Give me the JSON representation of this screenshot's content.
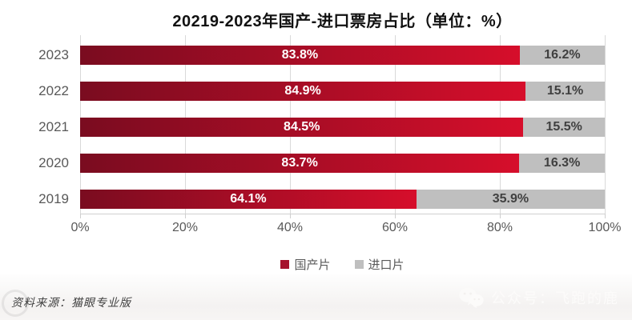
{
  "title": "20219-2023年国产-进口票房占比（单位：%）",
  "chart_data": {
    "type": "bar",
    "orientation": "horizontal",
    "stacked": true,
    "title": "20219-2023年国产-进口票房占比（单位：%）",
    "categories": [
      "2023",
      "2022",
      "2021",
      "2020",
      "2019"
    ],
    "series": [
      {
        "name": "国产片",
        "values": [
          83.8,
          84.9,
          84.5,
          83.7,
          64.1
        ],
        "bar_gradient_start": "#7a0c20",
        "bar_gradient_end": "#d60e2b",
        "label_color": "#ffffff"
      },
      {
        "name": "进口片",
        "values": [
          16.2,
          15.1,
          15.5,
          16.3,
          35.9
        ],
        "bar_color": "#bfbfbf",
        "label_color": "#404040"
      }
    ],
    "value_label_format": "percent-one-decimal",
    "x_ticks": [
      "0%",
      "20%",
      "40%",
      "60%",
      "80%",
      "100%"
    ],
    "x_tick_values": [
      0,
      20,
      40,
      60,
      80,
      100
    ],
    "xlim": [
      0,
      100
    ],
    "grid": true,
    "legend_position": "bottom"
  },
  "legend": {
    "items": [
      {
        "label": "国产片",
        "color": "#a5122d"
      },
      {
        "label": "进口片",
        "color": "#bfbfbf"
      }
    ]
  },
  "footer": {
    "source": "资料来源：猫眼专业版",
    "watermark_text": "公众号：飞跑的鹿"
  },
  "colors": {
    "grid": "#d9d9d9",
    "axis_text": "#595959",
    "title_text": "#111111"
  }
}
